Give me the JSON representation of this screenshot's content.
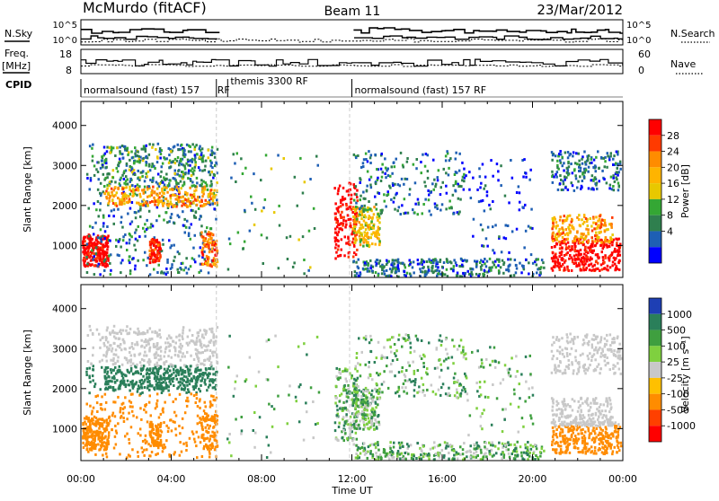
{
  "header": {
    "station": "McMurdo (fitACF)",
    "beam": "Beam 11",
    "date": "23/Mar/2012"
  },
  "strip": {
    "nsky_label": "N.Sky",
    "nsky_ticks": [
      "10^5",
      "10^0"
    ],
    "nsearch_label": "N.Search",
    "nsearch_ticks": [
      "10^5",
      "10^0"
    ],
    "freq_label": "Freq.",
    "freq_unit": "[MHz]",
    "freq_ticks": [
      "18",
      "8"
    ],
    "nave_label": "Nave",
    "nave_ticks": [
      "60",
      "0"
    ],
    "cpid_label": "CPID"
  },
  "cpid_segments": [
    {
      "label": "normalsound (fast) 157",
      "start_hr": 0,
      "end_hr": 6
    },
    {
      "label": "RF",
      "start_hr": 6,
      "end_hr": 6.5
    },
    {
      "label": "themis 3300 RF",
      "start_hr": 6.5,
      "end_hr": 12
    },
    {
      "label": "normalsound (fast) 157 RF",
      "start_hr": 12,
      "end_hr": 24
    }
  ],
  "chart_data": [
    {
      "type": "heatmap",
      "quantity": "power",
      "ylabel": "Slant Range [km]",
      "y_ticks": [
        "1000",
        "2000",
        "3000",
        "4000"
      ],
      "ylim": [
        200,
        4600
      ],
      "x_ticks": [
        "00:00",
        "04:00",
        "08:00",
        "12:00",
        "16:00",
        "20:00",
        "00:00"
      ],
      "xlim_hr": [
        0,
        24
      ],
      "colorbar_label": "Power [dB]",
      "colorbar_ticks": [
        "28",
        "24",
        "20",
        "16",
        "12",
        "8",
        "4"
      ],
      "colorbar_colors": [
        "#ff0000",
        "#ff3a00",
        "#ff8c00",
        "#ffb400",
        "#e8c800",
        "#34a734",
        "#2f7f4e",
        "#1e5fb4",
        "#0000ff"
      ]
    },
    {
      "type": "heatmap",
      "quantity": "velocity",
      "ylabel": "Slant Range [km]",
      "y_ticks": [
        "1000",
        "2000",
        "3000",
        "4000"
      ],
      "ylim": [
        200,
        4600
      ],
      "x_ticks": [
        "00:00",
        "04:00",
        "08:00",
        "12:00",
        "16:00",
        "20:00",
        "00:00"
      ],
      "xlim_hr": [
        0,
        24
      ],
      "xlabel": "Time UT",
      "colorbar_label": "Velocity [m s⁻¹]",
      "colorbar_ticks": [
        "1000",
        "500",
        "100",
        "25",
        "-25",
        "-100",
        "-500",
        "-1000"
      ],
      "colorbar_colors": [
        "#1e3fb4",
        "#2a7f5a",
        "#3f9f3f",
        "#7fd03f",
        "#c8c8c8",
        "#ffc000",
        "#ff8c00",
        "#ff4000",
        "#ff0000"
      ]
    }
  ]
}
